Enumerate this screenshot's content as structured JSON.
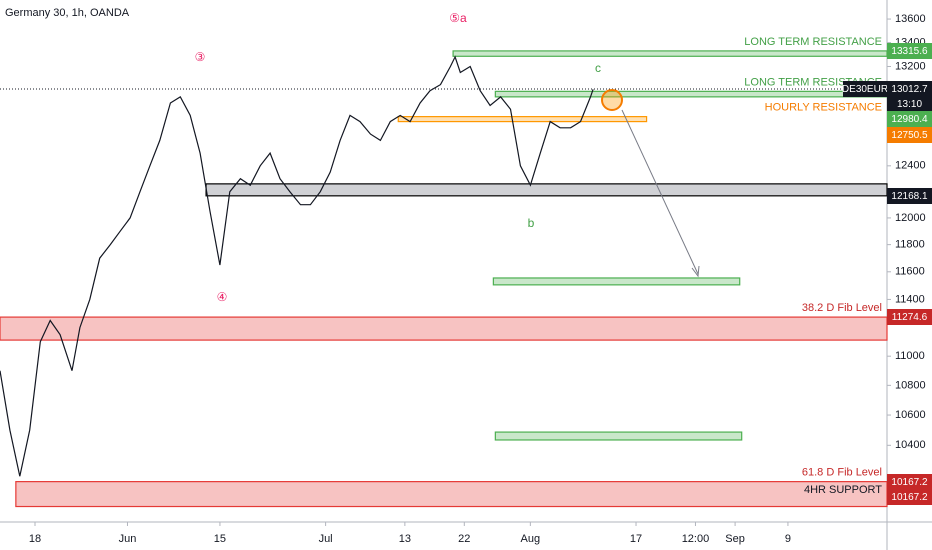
{
  "chart_data": {
    "type": "line",
    "title": "Germany 30, 1h, OANDA",
    "symbol_tag": "DE30EUR",
    "countdown": "13:10",
    "log_scale": true,
    "ylim": [
      13764,
      9910
    ],
    "yticks": [
      13600,
      13400,
      13200,
      12400,
      12000,
      11800,
      11600,
      11400,
      11000,
      10800,
      10600,
      10400
    ],
    "xlim": [
      -5.3,
      129
    ],
    "xticks": [
      {
        "value": 0,
        "label": "18"
      },
      {
        "value": 14,
        "label": "Jun"
      },
      {
        "value": 28,
        "label": "15"
      },
      {
        "value": 44,
        "label": "Jul"
      },
      {
        "value": 56,
        "label": "13"
      },
      {
        "value": 65,
        "label": "22"
      },
      {
        "value": 75,
        "label": "Aug"
      },
      {
        "value": 91,
        "label": "17"
      },
      {
        "value": 100,
        "label": "12:00"
      },
      {
        "value": 106,
        "label": "Sep"
      },
      {
        "value": 114,
        "label": "9"
      }
    ],
    "series": [
      {
        "name": "DE30EUR",
        "color": "#131722",
        "x": [
          -5.3,
          -3.8,
          -2.3,
          -0.8,
          0.8,
          2.3,
          3.8,
          5.6,
          6.8,
          8.3,
          9.8,
          11.4,
          12.9,
          14.4,
          15.9,
          17.4,
          18.9,
          20.5,
          22,
          23.5,
          25,
          26.5,
          28,
          29.5,
          31.1,
          32.6,
          34.1,
          35.6,
          37.1,
          38.6,
          40.2,
          41.7,
          43.2,
          44.7,
          46.2,
          47.7,
          49.2,
          50.8,
          52.3,
          53.8,
          55.3,
          56.8,
          58.3,
          59.8,
          61.4,
          62.9,
          63.6,
          64.4,
          65.9,
          67.4,
          68.9,
          70.5,
          72,
          73.5,
          75,
          76.5,
          78,
          79.5,
          81.1,
          82.6,
          84.1,
          84.5
        ],
        "values": [
          10900,
          10500,
          10200,
          10500,
          11100,
          11250,
          11150,
          10900,
          11200,
          11400,
          11700,
          11800,
          11900,
          12000,
          12200,
          12400,
          12600,
          12900,
          12950,
          12800,
          12500,
          12050,
          11650,
          12200,
          12300,
          12250,
          12400,
          12500,
          12300,
          12200,
          12100,
          12100,
          12200,
          12350,
          12600,
          12800,
          12750,
          12650,
          12600,
          12750,
          12800,
          12750,
          12900,
          13000,
          13050,
          13200,
          13280,
          13150,
          13200,
          13000,
          12880,
          12950,
          12850,
          12400,
          12250,
          12500,
          12750,
          12700,
          12700,
          12750,
          12950,
          13012
        ]
      }
    ],
    "zones": [
      {
        "label": "LONG TERM RESISTANCE",
        "low": 13285,
        "high": 13330,
        "from": 63.3,
        "to": 129,
        "fill": "rgba(76,175,80,0.3)",
        "stroke": "#4caf50"
      },
      {
        "label": "LONG TERM RESISTANCE",
        "low": 12950,
        "high": 12995,
        "from": 69.7,
        "to": 129,
        "fill": "rgba(76,175,80,0.3)",
        "stroke": "#4caf50"
      },
      {
        "label": "HOURLY RESISTANCE",
        "low": 12750,
        "high": 12790,
        "from": 55,
        "to": 92.6,
        "fill": "rgba(255,152,0,0.3)",
        "stroke": "#ff9800"
      },
      {
        "low": 12168,
        "high": 12260,
        "from": 25.9,
        "to": 129,
        "fill": "rgba(120,123,134,0.35)",
        "stroke": "#000000"
      },
      {
        "low": 11505,
        "high": 11555,
        "from": 69.4,
        "to": 106.7,
        "fill": "rgba(76,175,80,0.3)",
        "stroke": "#4caf50"
      },
      {
        "low": 10435,
        "high": 10487,
        "from": 69.7,
        "to": 107,
        "fill": "rgba(76,175,80,0.3)",
        "stroke": "#4caf50"
      },
      {
        "label": "38.2 D Fib Level",
        "low": 11112,
        "high": 11274,
        "from": -5.3,
        "to": 129,
        "fill": "rgba(229,57,53,0.3)",
        "stroke": "#e53935"
      },
      {
        "label": "61.8 D Fib Level",
        "inner_label": "4HR SUPPORT",
        "low": 10007,
        "high": 10165,
        "from": -2.9,
        "to": 129,
        "fill": "rgba(229,57,53,0.3)",
        "stroke": "#e53935"
      }
    ],
    "badges": [
      {
        "label": "13315.6",
        "color": "#4caf50"
      },
      {
        "label": "13012.7",
        "color": "#131722"
      },
      {
        "label": "13:10",
        "color": "#131722"
      },
      {
        "label": "12980.4",
        "color": "#4caf50"
      },
      {
        "label": "12750.5",
        "color": "#f57c00"
      },
      {
        "label": "12168.1",
        "color": "#131722"
      },
      {
        "label": "11274.6",
        "color": "#c62828"
      },
      {
        "label": "10167.2",
        "color": "#c62828"
      },
      {
        "label": "10167.2",
        "color": "#c62828"
      }
    ],
    "waves": [
      {
        "label": "⑤a",
        "color": "#e91e63"
      },
      {
        "label": "③",
        "color": "#e91e63"
      },
      {
        "label": "④",
        "color": "#e91e63"
      },
      {
        "label": "c",
        "color": "#43a047"
      },
      {
        "label": "b",
        "color": "#43a047"
      }
    ]
  }
}
